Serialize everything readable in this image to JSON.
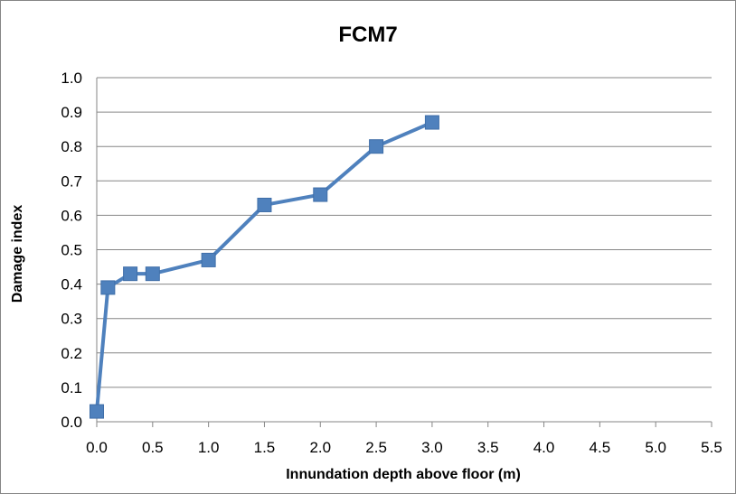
{
  "chart_data": {
    "type": "scatter",
    "title": "FCM7",
    "xlabel": "Innundation depth above floor (m)",
    "ylabel": "Damage index",
    "xlim": [
      0,
      5.5
    ],
    "ylim": [
      0,
      1.0
    ],
    "xticks": [
      "0.0",
      "0.5",
      "1.0",
      "1.5",
      "2.0",
      "2.5",
      "3.0",
      "3.5",
      "4.0",
      "4.5",
      "5.0",
      "5.5"
    ],
    "yticks": [
      "0.0",
      "0.1",
      "0.2",
      "0.3",
      "0.4",
      "0.5",
      "0.6",
      "0.7",
      "0.8",
      "0.9",
      "1.0"
    ],
    "grid": "horizontal",
    "legend": "none",
    "series": [
      {
        "x": [
          0.0,
          0.1,
          0.3,
          0.5,
          1.0,
          1.5,
          2.0,
          2.5,
          3.0
        ],
        "y": [
          0.03,
          0.39,
          0.43,
          0.43,
          0.47,
          0.63,
          0.66,
          0.8,
          0.87
        ],
        "color": "#4F81BD",
        "marker": "square",
        "line": "straight"
      }
    ]
  }
}
